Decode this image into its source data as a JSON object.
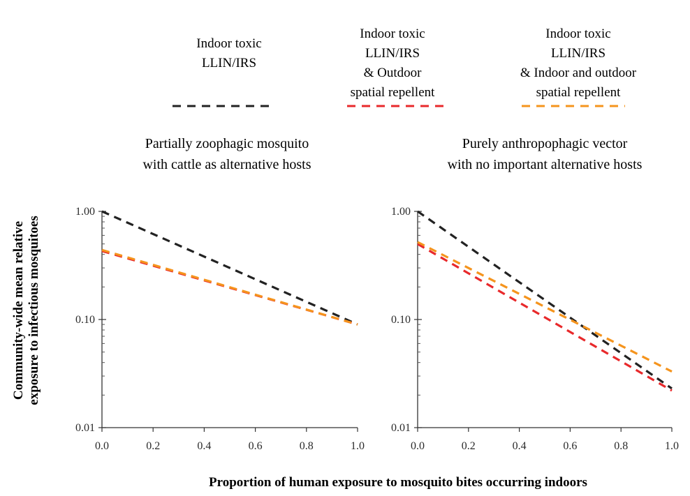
{
  "legend": [
    {
      "label_lines": [
        "Indoor toxic",
        "LLIN/IRS"
      ],
      "color": "#222222"
    },
    {
      "label_lines": [
        "Indoor toxic",
        "LLIN/IRS",
        "& Outdoor",
        "spatial repellent"
      ],
      "color": "#e8292b"
    },
    {
      "label_lines": [
        "Indoor toxic",
        "LLIN/IRS",
        "& Indoor and outdoor",
        "spatial repellent"
      ],
      "color": "#f5941d"
    }
  ],
  "ylabel_lines": [
    "Community-wide mean relative",
    "exposure to infectious mosquitoes"
  ],
  "xlabel": "Proportion of human exposure to mosquito bites occurring indoors",
  "chart_data": [
    {
      "type": "line",
      "subtitle_lines": [
        "Partially zoophagic mosquito",
        "with cattle as alternative hosts"
      ],
      "y_scale": "log",
      "xlim": [
        0,
        1
      ],
      "ylim": [
        0.01,
        1
      ],
      "x_ticks": [
        "0.0",
        "0.2",
        "0.4",
        "0.6",
        "0.8",
        "1.0"
      ],
      "y_ticks": [
        "1.00",
        "0.10",
        "0.01"
      ],
      "series": [
        {
          "name": "Indoor toxic LLIN/IRS",
          "x": [
            0,
            1
          ],
          "y": [
            1.0,
            0.09
          ]
        },
        {
          "name": "Indoor toxic LLIN/IRS & Outdoor spatial repellent",
          "x": [
            0,
            1
          ],
          "y": [
            0.43,
            0.09
          ]
        },
        {
          "name": "Indoor toxic LLIN/IRS & Indoor and outdoor spatial repellent",
          "x": [
            0,
            1
          ],
          "y": [
            0.44,
            0.09
          ]
        }
      ]
    },
    {
      "type": "line",
      "subtitle_lines": [
        "Purely anthropophagic vector",
        "with no important alternative hosts"
      ],
      "y_scale": "log",
      "xlim": [
        0,
        1
      ],
      "ylim": [
        0.01,
        1
      ],
      "x_ticks": [
        "0.0",
        "0.2",
        "0.4",
        "0.6",
        "0.8",
        "1.0"
      ],
      "y_ticks": [
        "1.00",
        "0.10",
        "0.01"
      ],
      "series": [
        {
          "name": "Indoor toxic LLIN/IRS",
          "x": [
            0,
            1
          ],
          "y": [
            1.0,
            0.023
          ]
        },
        {
          "name": "Indoor toxic LLIN/IRS & Outdoor spatial repellent",
          "x": [
            0,
            1
          ],
          "y": [
            0.5,
            0.022
          ]
        },
        {
          "name": "Indoor toxic LLIN/IRS & Indoor and outdoor spatial repellent",
          "x": [
            0,
            1
          ],
          "y": [
            0.52,
            0.033
          ]
        }
      ]
    }
  ]
}
